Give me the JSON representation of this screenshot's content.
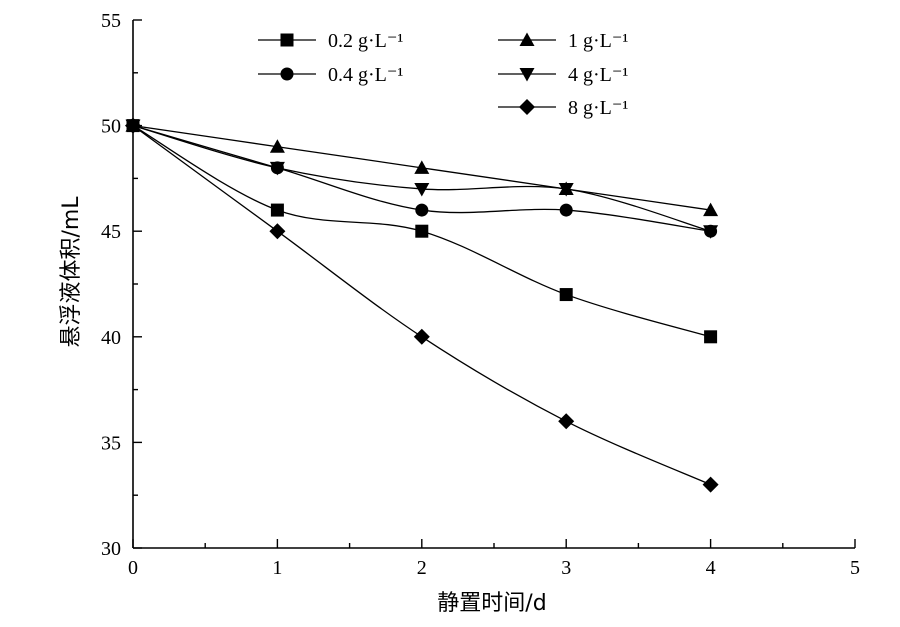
{
  "chart_data": {
    "type": "line",
    "xlabel": "静置时间/d",
    "ylabel": "悬浮液体积/mL",
    "xlim": [
      0,
      5
    ],
    "ylim": [
      30,
      55
    ],
    "xticks": [
      "0",
      "1",
      "2",
      "3",
      "4",
      "5"
    ],
    "yticks": [
      "30",
      "35",
      "40",
      "45",
      "50",
      "55"
    ],
    "grid": false,
    "legend_position": "top",
    "x": [
      0,
      1,
      2,
      3,
      4
    ],
    "series": [
      {
        "name": "0.2 g·L⁻¹",
        "marker": "square",
        "values": [
          50,
          46,
          45,
          42,
          40
        ]
      },
      {
        "name": "0.4 g·L⁻¹",
        "marker": "circle",
        "values": [
          50,
          48,
          46,
          46,
          45
        ]
      },
      {
        "name": "1 g·L⁻¹",
        "marker": "triangle-up",
        "values": [
          50,
          49,
          48,
          47,
          46
        ]
      },
      {
        "name": "4 g·L⁻¹",
        "marker": "triangle-down",
        "values": [
          50,
          48,
          47,
          47,
          45
        ]
      },
      {
        "name": "8 g·L⁻¹",
        "marker": "diamond",
        "values": [
          50,
          45,
          40,
          36,
          33
        ]
      }
    ],
    "colors": {
      "line": "#000000",
      "background": "#ffffff"
    }
  }
}
